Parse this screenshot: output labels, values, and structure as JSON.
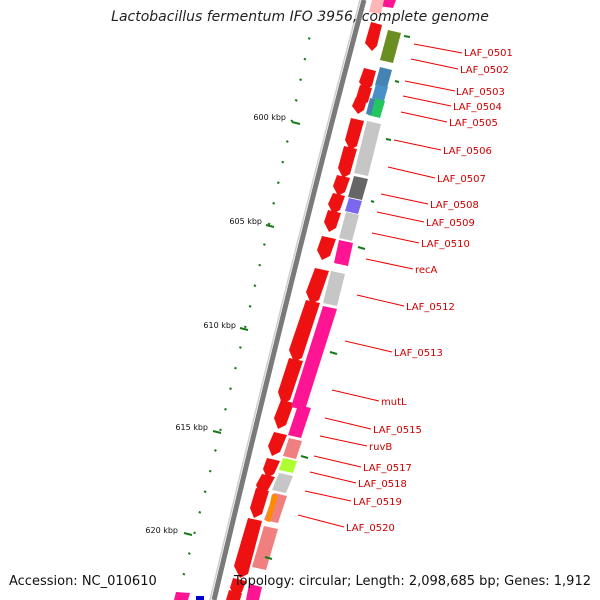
{
  "title": "Lactobacillus fermentum IFO 3956, complete genome",
  "accession_text": "Accession: NC_010610",
  "summary_text": "Topology: circular; Length: 2,098,685 bp; Genes: 1,912",
  "colors": {
    "backbone": "#888888",
    "ticks": "#1a7a1a",
    "gene_arrow": "#ff0000",
    "label": "#cc0000",
    "leader_line": "#ee0000"
  },
  "scale_labels": [
    "600 kbp",
    "605 kbp",
    "610 kbp",
    "615 kbp",
    "620 kbp"
  ],
  "gene_labels": [
    "LAF_0501",
    "LAF_0502",
    "LAF_0503",
    "LAF_0504",
    "LAF_0505",
    "LAF_0506",
    "LAF_0507",
    "LAF_0508",
    "LAF_0509",
    "LAF_0510",
    "recA",
    "LAF_0512",
    "LAF_0513",
    "mutL",
    "LAF_0515",
    "ruvB",
    "LAF_0517",
    "LAF_0518",
    "LAF_0519",
    "LAF_0520"
  ]
}
